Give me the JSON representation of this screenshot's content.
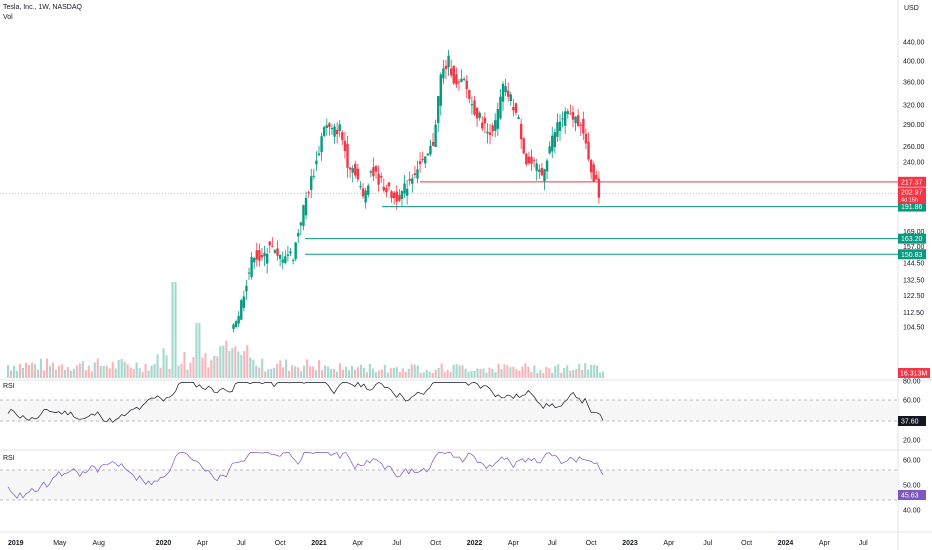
{
  "header": {
    "symbol_title": "Tesla, Inc., 1W, NASDAQ",
    "volume_label": "Vol",
    "currency": "USD"
  },
  "chart_data": {
    "type": "candlestick",
    "price_axis": {
      "tick_labels": [
        "440.00",
        "400.00",
        "360.00",
        "320.00",
        "290.00",
        "260.00",
        "240.00",
        "169.00",
        "157.00",
        "144.50",
        "132.50",
        "122.50",
        "112.50",
        "104.50",
        "80.00"
      ],
      "scale": "log"
    },
    "time_axis": {
      "tick_labels": [
        "2019",
        "May",
        "Aug",
        "2020",
        "Apr",
        "Jul",
        "Oct",
        "2021",
        "Apr",
        "Jul",
        "Oct",
        "2022",
        "Apr",
        "Jul",
        "Oct",
        "2023",
        "Apr",
        "Jul",
        "Oct",
        "2024",
        "Apr",
        "Jul"
      ]
    },
    "horizontal_levels": [
      {
        "label": "217.37",
        "value": 217.37,
        "color": "#f23645"
      },
      {
        "label": "191.86",
        "value": 191.86,
        "color": "#089981"
      },
      {
        "label": "163.20",
        "value": 163.2,
        "color": "#089981"
      },
      {
        "label": "150.83",
        "value": 150.83,
        "color": "#089981"
      }
    ],
    "last_price": {
      "label": "202.97",
      "countdown": "4d 15h",
      "color": "#f23645"
    },
    "volume": {
      "label": "16.313M",
      "color": "#f23645"
    },
    "price_path_weekly": [
      [
        2020.45,
        104
      ],
      [
        2020.5,
        112
      ],
      [
        2020.55,
        132
      ],
      [
        2020.6,
        152
      ],
      [
        2020.65,
        145
      ],
      [
        2020.7,
        160
      ],
      [
        2020.75,
        147
      ],
      [
        2020.8,
        152
      ],
      [
        2020.85,
        150
      ],
      [
        2020.9,
        180
      ],
      [
        2020.95,
        210
      ],
      [
        2021.0,
        240
      ],
      [
        2021.05,
        290
      ],
      [
        2021.1,
        280
      ],
      [
        2021.15,
        285
      ],
      [
        2021.2,
        240
      ],
      [
        2021.25,
        230
      ],
      [
        2021.3,
        200
      ],
      [
        2021.35,
        230
      ],
      [
        2021.4,
        220
      ],
      [
        2021.45,
        210
      ],
      [
        2021.5,
        200
      ],
      [
        2021.55,
        205
      ],
      [
        2021.6,
        220
      ],
      [
        2021.65,
        235
      ],
      [
        2021.7,
        240
      ],
      [
        2021.75,
        265
      ],
      [
        2021.8,
        370
      ],
      [
        2021.85,
        400
      ],
      [
        2021.9,
        350
      ],
      [
        2021.95,
        360
      ],
      [
        2022.0,
        320
      ],
      [
        2022.05,
        300
      ],
      [
        2022.1,
        280
      ],
      [
        2022.15,
        290
      ],
      [
        2022.2,
        350
      ],
      [
        2022.25,
        330
      ],
      [
        2022.3,
        295
      ],
      [
        2022.35,
        240
      ],
      [
        2022.4,
        235
      ],
      [
        2022.45,
        225
      ],
      [
        2022.5,
        260
      ],
      [
        2022.55,
        290
      ],
      [
        2022.6,
        305
      ],
      [
        2022.65,
        300
      ],
      [
        2022.7,
        295
      ],
      [
        2022.75,
        240
      ],
      [
        2022.8,
        215
      ],
      [
        2022.82,
        203
      ]
    ],
    "rsi_panels": [
      {
        "label": "RSI",
        "tick_labels": [
          "80.00",
          "60.00",
          "20.00"
        ],
        "current": "37.60",
        "current_color": "#131722",
        "levels": [
          70,
          30
        ],
        "range": [
          20,
          80
        ],
        "line_color": "#131722"
      },
      {
        "label": "RSI",
        "tick_labels": [
          "60.00",
          "50.00",
          "40.00"
        ],
        "current": "45.63",
        "current_color": "#7e57c2",
        "levels": [
          55,
          45
        ],
        "range": [
          38,
          62
        ],
        "line_color": "#7e57c2"
      }
    ]
  }
}
